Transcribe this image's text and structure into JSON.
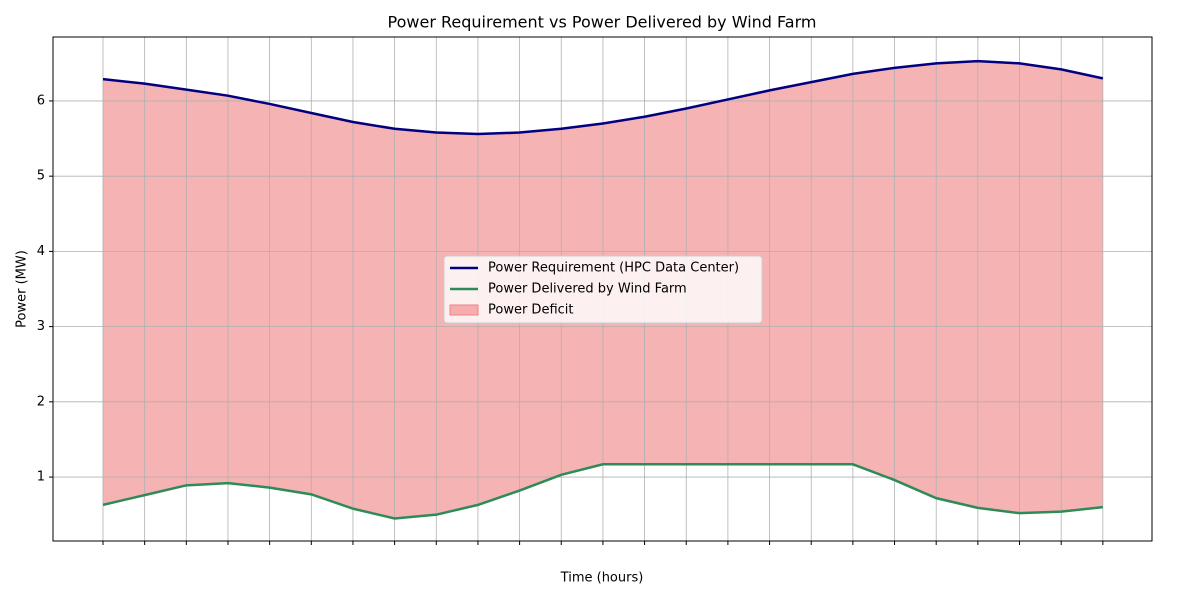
{
  "chart_data": {
    "type": "line",
    "title": "Power Requirement vs Power Delivered by Wind Farm",
    "x_label": "Time (hours)",
    "y_label": "Power (MW)",
    "x": [
      0,
      1,
      2,
      3,
      4,
      5,
      6,
      7,
      8,
      9,
      10,
      11,
      12,
      13,
      14,
      15,
      16,
      17,
      18,
      19,
      20,
      21,
      22,
      23,
      24
    ],
    "series": [
      {
        "name": "Power Requirement (HPC Data Center)",
        "color": "#000080",
        "values": [
          6.29,
          6.23,
          6.15,
          6.07,
          5.96,
          5.84,
          5.72,
          5.63,
          5.58,
          5.56,
          5.58,
          5.63,
          5.7,
          5.79,
          5.9,
          6.02,
          6.14,
          6.25,
          6.36,
          6.44,
          6.5,
          6.53,
          6.5,
          6.42,
          6.3
        ]
      },
      {
        "name": "Power Delivered by Wind Farm",
        "color": "#2e8b57",
        "values": [
          0.63,
          0.76,
          0.89,
          0.92,
          0.86,
          0.77,
          0.58,
          0.45,
          0.5,
          0.63,
          0.82,
          1.03,
          1.17,
          1.17,
          1.17,
          1.17,
          1.17,
          1.17,
          1.17,
          0.96,
          0.72,
          0.59,
          0.52,
          0.54,
          0.6
        ]
      }
    ],
    "fill_between": {
      "name": "Power Deficit",
      "color": "#f08080"
    },
    "xlim": [
      -1.2,
      25.18
    ],
    "ylim": [
      0.15,
      6.85
    ],
    "yticks": [
      1,
      2,
      3,
      4,
      5,
      6
    ],
    "grid": true,
    "legend": "center"
  }
}
